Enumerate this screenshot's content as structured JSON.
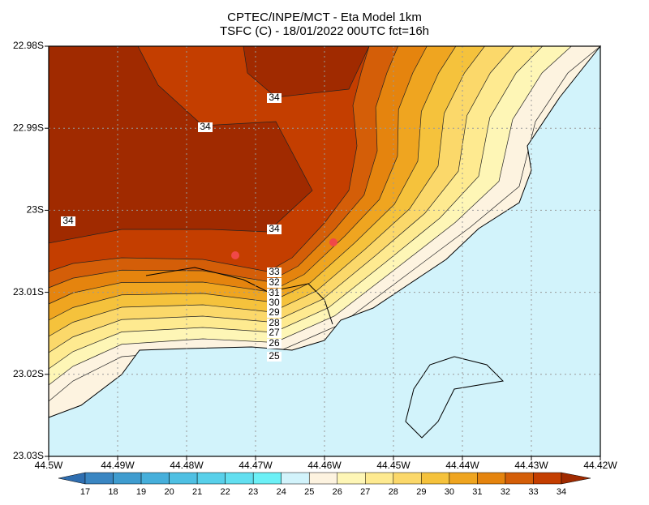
{
  "chart_data": {
    "type": "contour",
    "title": "CPTEC/INPE/MCT -  Eta Model 1km",
    "subtitle": "TSFC (C) - 18/01/2022 00UTC fct=16h",
    "xlim": [
      -44.5,
      -44.42
    ],
    "xticks": [
      {
        "value": -44.5,
        "label": "44.5W"
      },
      {
        "value": -44.49,
        "label": "44.49W"
      },
      {
        "value": -44.48,
        "label": "44.48W"
      },
      {
        "value": -44.47,
        "label": "44.47W"
      },
      {
        "value": -44.46,
        "label": "44.46W"
      },
      {
        "value": -44.45,
        "label": "44.45W"
      },
      {
        "value": -44.44,
        "label": "44.44W"
      },
      {
        "value": -44.43,
        "label": "44.43W"
      },
      {
        "value": -44.42,
        "label": "44.42W"
      }
    ],
    "ylim": [
      -23.03,
      -22.98
    ],
    "yticks": [
      {
        "value": -22.98,
        "label": "22.98S"
      },
      {
        "value": -22.99,
        "label": "22.99S"
      },
      {
        "value": -23,
        "label": "23S"
      },
      {
        "value": -23.01,
        "label": "23.01S"
      },
      {
        "value": -23.02,
        "label": "23.02S"
      },
      {
        "value": -23.03,
        "label": "23.03S"
      }
    ],
    "grid": true,
    "colorbar": {
      "levels": [
        17,
        18,
        19,
        20,
        21,
        22,
        23,
        24,
        25,
        26,
        27,
        28,
        29,
        30,
        31,
        32,
        33,
        34
      ],
      "colors": [
        "#2f6eb0",
        "#3a86c2",
        "#3f9ccf",
        "#46afdb",
        "#4fc0e3",
        "#58d0ea",
        "#62dff0",
        "#6cf0f6",
        "#d2f3fb",
        "#fdf3e0",
        "#fef6b6",
        "#feea90",
        "#fbd86a",
        "#f5c23c",
        "#efa520",
        "#e5840e",
        "#d45e08",
        "#c43e00",
        "#a02a00"
      ]
    },
    "contour_labels": [
      34,
      34,
      34,
      34,
      33,
      32,
      31,
      30,
      29,
      28,
      27,
      26,
      25
    ]
  }
}
